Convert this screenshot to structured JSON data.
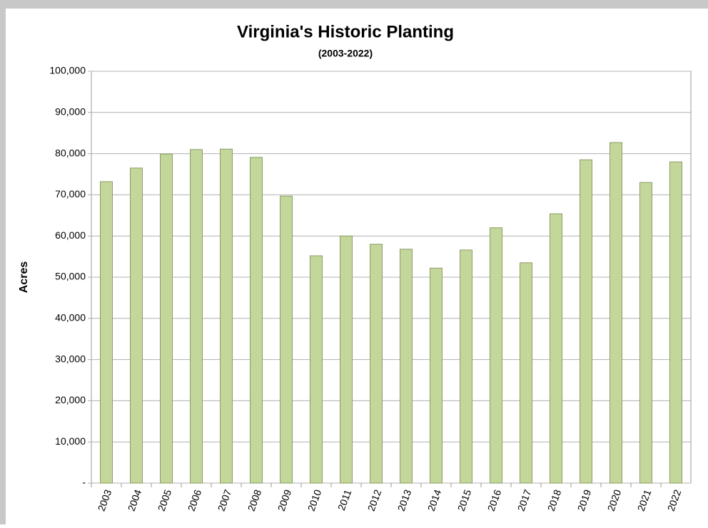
{
  "chart_data": {
    "type": "bar",
    "title": "Virginia's Historic Planting",
    "subtitle": "(2003-2022)",
    "y_label": "Acres",
    "categories": [
      "2003",
      "2004",
      "2005",
      "2006",
      "2007",
      "2008",
      "2009",
      "2010",
      "2011",
      "2012",
      "2013",
      "2014",
      "2015",
      "2016",
      "2017",
      "2018",
      "2019",
      "2020",
      "2021",
      "2022"
    ],
    "values": [
      73200,
      76500,
      79900,
      81000,
      81100,
      79100,
      69700,
      55200,
      60000,
      58000,
      56800,
      52200,
      56600,
      62000,
      53500,
      65400,
      78500,
      82700,
      73000,
      78000
    ],
    "color": "#c4d79b",
    "ylim": [
      0,
      100000
    ],
    "yticks": [
      {
        "value": 0,
        "label": "-"
      },
      {
        "value": 10000,
        "label": "10,000"
      },
      {
        "value": 20000,
        "label": "20,000"
      },
      {
        "value": 30000,
        "label": "30,000"
      },
      {
        "value": 40000,
        "label": "40,000"
      },
      {
        "value": 50000,
        "label": "50,000"
      },
      {
        "value": 60000,
        "label": "60,000"
      },
      {
        "value": 70000,
        "label": "70,000"
      },
      {
        "value": 80000,
        "label": "80,000"
      },
      {
        "value": 90000,
        "label": "90,000"
      },
      {
        "value": 100000,
        "label": "100,000"
      }
    ],
    "grid": true
  }
}
